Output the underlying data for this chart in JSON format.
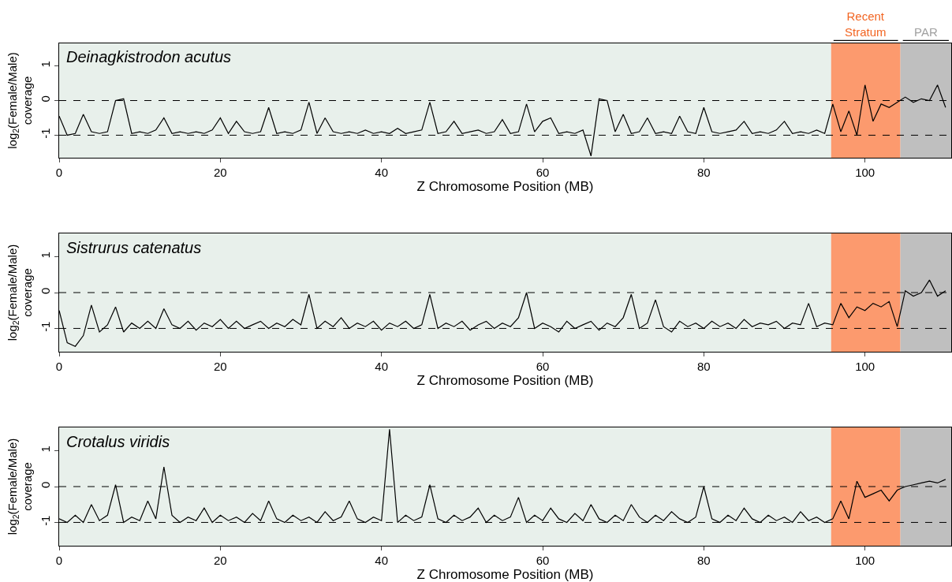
{
  "chart_data": [
    {
      "type": "line",
      "title": "Deinagkistrodon acutus",
      "xlabel": "Z Chromosome Position (MB)",
      "ylabel": "log$_{2}$(Female/Male)\ncoverage",
      "xlim": [
        0,
        110.7
      ],
      "xticks": [
        0,
        20,
        40,
        60,
        80,
        100
      ],
      "ylim": [
        -1.65,
        1.65
      ],
      "yticks": [
        -1,
        0,
        1
      ],
      "marker": "none",
      "line_style": "solid",
      "x": [
        0,
        1,
        2,
        3,
        4,
        5,
        6,
        7,
        8,
        9,
        10,
        11,
        12,
        13,
        14,
        15,
        16,
        17,
        18,
        19,
        20,
        21,
        22,
        23,
        24,
        25,
        26,
        27,
        28,
        29,
        30,
        31,
        32,
        33,
        34,
        35,
        36,
        37,
        38,
        39,
        40,
        41,
        42,
        43,
        44,
        45,
        46,
        47,
        48,
        49,
        50,
        51,
        52,
        53,
        54,
        55,
        56,
        57,
        58,
        59,
        60,
        61,
        62,
        63,
        64,
        65,
        66,
        67,
        68,
        69,
        70,
        71,
        72,
        73,
        74,
        75,
        76,
        77,
        78,
        79,
        80,
        81,
        82,
        83,
        84,
        85,
        86,
        87,
        88,
        89,
        90,
        91,
        92,
        93,
        94,
        95,
        96,
        97,
        98,
        99,
        100,
        101,
        102,
        103,
        104,
        105,
        106,
        107,
        108,
        109,
        110
      ],
      "series": [
        {
          "color": "#000000",
          "values": [
            -0.45,
            -1.0,
            -0.95,
            -0.4,
            -0.9,
            -0.95,
            -0.9,
            0.0,
            0.05,
            -0.95,
            -0.9,
            -0.95,
            -0.85,
            -0.5,
            -0.95,
            -0.9,
            -0.95,
            -0.9,
            -0.95,
            -0.85,
            -0.5,
            -0.95,
            -0.6,
            -0.9,
            -0.95,
            -0.9,
            -0.2,
            -0.95,
            -0.9,
            -0.95,
            -0.85,
            -0.05,
            -0.95,
            -0.5,
            -0.9,
            -0.95,
            -0.9,
            -0.95,
            -0.85,
            -0.95,
            -0.9,
            -0.95,
            -0.8,
            -0.95,
            -0.9,
            -0.85,
            -0.05,
            -0.95,
            -0.9,
            -0.6,
            -0.95,
            -0.9,
            -0.85,
            -0.95,
            -0.9,
            -0.55,
            -0.95,
            -0.9,
            -0.1,
            -0.9,
            -0.6,
            -0.5,
            -0.95,
            -0.9,
            -0.95,
            -0.85,
            -1.6,
            0.05,
            0.0,
            -0.9,
            -0.4,
            -0.95,
            -0.9,
            -0.5,
            -0.95,
            -0.9,
            -0.95,
            -0.45,
            -0.9,
            -0.95,
            -0.2,
            -0.9,
            -0.95,
            -0.9,
            -0.85,
            -0.6,
            -0.95,
            -0.9,
            -0.95,
            -0.85,
            -0.6,
            -0.95,
            -0.9,
            -0.95,
            -0.85,
            -0.95,
            -0.1,
            -0.9,
            -0.3,
            -1.0,
            0.45,
            -0.6,
            -0.1,
            -0.2,
            -0.05,
            0.1,
            -0.05,
            0.05,
            0.0,
            0.45,
            -0.2
          ]
        }
      ],
      "ref_lines": [
        {
          "axis": "y",
          "value": 0,
          "line_style": "dashed"
        },
        {
          "axis": "y",
          "value": -1,
          "line_style": "dashed"
        }
      ],
      "bands": [
        {
          "axis": "x",
          "from": 0,
          "to": 95.8,
          "color": "#e8f0eb"
        },
        {
          "axis": "x",
          "from": 95.8,
          "to": 104.4,
          "label": "Recent\nStratum",
          "color": "#fc9a6e"
        },
        {
          "axis": "x",
          "from": 104.4,
          "to": 110.7,
          "label": "PAR",
          "color": "#bfbfbf"
        }
      ]
    },
    {
      "type": "line",
      "title": "Sistrurus catenatus",
      "xlabel": "Z Chromosome Position (MB)",
      "ylabel": "log$_{2}$(Female/Male)\ncoverage",
      "xlim": [
        0,
        110.7
      ],
      "xticks": [
        0,
        20,
        40,
        60,
        80,
        100
      ],
      "ylim": [
        -1.65,
        1.65
      ],
      "yticks": [
        -1,
        0,
        1
      ],
      "marker": "none",
      "line_style": "solid",
      "x": [
        0,
        1,
        2,
        3,
        4,
        5,
        6,
        7,
        8,
        9,
        10,
        11,
        12,
        13,
        14,
        15,
        16,
        17,
        18,
        19,
        20,
        21,
        22,
        23,
        24,
        25,
        26,
        27,
        28,
        29,
        30,
        31,
        32,
        33,
        34,
        35,
        36,
        37,
        38,
        39,
        40,
        41,
        42,
        43,
        44,
        45,
        46,
        47,
        48,
        49,
        50,
        51,
        52,
        53,
        54,
        55,
        56,
        57,
        58,
        59,
        60,
        61,
        62,
        63,
        64,
        65,
        66,
        67,
        68,
        69,
        70,
        71,
        72,
        73,
        74,
        75,
        76,
        77,
        78,
        79,
        80,
        81,
        82,
        83,
        84,
        85,
        86,
        87,
        88,
        89,
        90,
        91,
        92,
        93,
        94,
        95,
        96,
        97,
        98,
        99,
        100,
        101,
        102,
        103,
        104,
        105,
        106,
        107,
        108,
        109,
        110
      ],
      "series": [
        {
          "color": "#000000",
          "values": [
            -0.5,
            -1.4,
            -1.5,
            -1.2,
            -0.35,
            -1.1,
            -0.9,
            -0.4,
            -1.1,
            -0.85,
            -1.0,
            -0.8,
            -1.0,
            -0.45,
            -0.9,
            -1.0,
            -0.8,
            -1.05,
            -0.85,
            -0.95,
            -0.75,
            -1.0,
            -0.8,
            -1.0,
            -0.9,
            -0.8,
            -1.0,
            -0.85,
            -0.95,
            -0.75,
            -0.9,
            -0.05,
            -1.0,
            -0.8,
            -0.95,
            -0.7,
            -1.0,
            -0.85,
            -0.95,
            -0.8,
            -1.05,
            -0.85,
            -0.95,
            -0.8,
            -1.0,
            -0.9,
            -0.05,
            -1.0,
            -0.85,
            -0.95,
            -0.8,
            -1.05,
            -0.9,
            -0.8,
            -1.0,
            -0.85,
            -0.95,
            -0.7,
            0.0,
            -1.0,
            -0.85,
            -0.95,
            -1.1,
            -0.8,
            -1.0,
            -0.9,
            -0.8,
            -1.05,
            -0.85,
            -0.95,
            -0.7,
            -0.05,
            -1.0,
            -0.85,
            -0.2,
            -0.95,
            -1.1,
            -0.8,
            -0.95,
            -0.85,
            -1.0,
            -0.8,
            -0.95,
            -0.85,
            -1.0,
            -0.75,
            -0.95,
            -0.85,
            -0.9,
            -0.8,
            -1.0,
            -0.85,
            -0.9,
            -0.3,
            -0.95,
            -0.85,
            -0.9,
            -0.3,
            -0.7,
            -0.4,
            -0.5,
            -0.3,
            -0.4,
            -0.25,
            -0.95,
            0.05,
            -0.1,
            0.0,
            0.35,
            -0.1,
            0.05
          ]
        }
      ],
      "ref_lines": [
        {
          "axis": "y",
          "value": 0,
          "line_style": "dashed"
        },
        {
          "axis": "y",
          "value": -1,
          "line_style": "dashed"
        }
      ],
      "bands": [
        {
          "axis": "x",
          "from": 0,
          "to": 95.8,
          "color": "#e8f0eb"
        },
        {
          "axis": "x",
          "from": 95.8,
          "to": 104.4,
          "color": "#fc9a6e"
        },
        {
          "axis": "x",
          "from": 104.4,
          "to": 110.7,
          "color": "#bfbfbf"
        }
      ]
    },
    {
      "type": "line",
      "title": "Crotalus viridis",
      "xlabel": "Z Chromosome Position (MB)",
      "ylabel": "log$_{2}$(Female/Male)\ncoverage",
      "xlim": [
        0,
        110.7
      ],
      "xticks": [
        0,
        20,
        40,
        60,
        80,
        100
      ],
      "ylim": [
        -1.65,
        1.65
      ],
      "yticks": [
        -1,
        0,
        1
      ],
      "marker": "none",
      "line_style": "solid",
      "x": [
        0,
        1,
        2,
        3,
        4,
        5,
        6,
        7,
        8,
        9,
        10,
        11,
        12,
        13,
        14,
        15,
        16,
        17,
        18,
        19,
        20,
        21,
        22,
        23,
        24,
        25,
        26,
        27,
        28,
        29,
        30,
        31,
        32,
        33,
        34,
        35,
        36,
        37,
        38,
        39,
        40,
        41,
        42,
        43,
        44,
        45,
        46,
        47,
        48,
        49,
        50,
        51,
        52,
        53,
        54,
        55,
        56,
        57,
        58,
        59,
        60,
        61,
        62,
        63,
        64,
        65,
        66,
        67,
        68,
        69,
        70,
        71,
        72,
        73,
        74,
        75,
        76,
        77,
        78,
        79,
        80,
        81,
        82,
        83,
        84,
        85,
        86,
        87,
        88,
        89,
        90,
        91,
        92,
        93,
        94,
        95,
        96,
        97,
        98,
        99,
        100,
        101,
        102,
        103,
        104,
        105,
        106,
        107,
        108,
        109,
        110
      ],
      "series": [
        {
          "color": "#000000",
          "values": [
            -0.9,
            -1.0,
            -0.8,
            -1.0,
            -0.5,
            -0.95,
            -0.8,
            0.05,
            -1.0,
            -0.85,
            -0.95,
            -0.4,
            -0.9,
            0.55,
            -0.8,
            -1.0,
            -0.85,
            -0.95,
            -0.6,
            -1.0,
            -0.8,
            -0.95,
            -0.85,
            -1.0,
            -0.75,
            -0.95,
            -0.4,
            -0.9,
            -1.0,
            -0.8,
            -0.95,
            -0.85,
            -1.0,
            -0.7,
            -0.95,
            -0.85,
            -0.4,
            -0.9,
            -1.0,
            -0.85,
            -0.95,
            1.6,
            -1.0,
            -0.8,
            -0.95,
            -0.85,
            0.05,
            -0.9,
            -1.0,
            -0.8,
            -0.95,
            -0.85,
            -0.6,
            -1.0,
            -0.8,
            -0.95,
            -0.85,
            -0.3,
            -1.0,
            -0.8,
            -0.95,
            -0.6,
            -0.9,
            -1.0,
            -0.75,
            -0.95,
            -0.5,
            -0.9,
            -1.0,
            -0.8,
            -0.95,
            -0.5,
            -0.85,
            -1.0,
            -0.8,
            -0.95,
            -0.7,
            -0.9,
            -1.0,
            -0.85,
            0.0,
            -0.9,
            -1.0,
            -0.8,
            -0.95,
            -0.6,
            -0.9,
            -1.0,
            -0.8,
            -0.95,
            -0.85,
            -1.0,
            -0.7,
            -0.95,
            -0.85,
            -1.0,
            -0.9,
            -0.4,
            -0.9,
            0.15,
            -0.3,
            -0.2,
            -0.1,
            -0.4,
            -0.1,
            0.0,
            0.05,
            0.1,
            0.15,
            0.1,
            0.2
          ]
        }
      ],
      "ref_lines": [
        {
          "axis": "y",
          "value": 0,
          "line_style": "dashed"
        },
        {
          "axis": "y",
          "value": -1,
          "line_style": "dashed"
        }
      ],
      "bands": [
        {
          "axis": "x",
          "from": 0,
          "to": 95.8,
          "color": "#e8f0eb"
        },
        {
          "axis": "x",
          "from": 95.8,
          "to": 104.4,
          "color": "#fc9a6e"
        },
        {
          "axis": "x",
          "from": 104.4,
          "to": 110.7,
          "color": "#bfbfbf"
        }
      ]
    }
  ]
}
